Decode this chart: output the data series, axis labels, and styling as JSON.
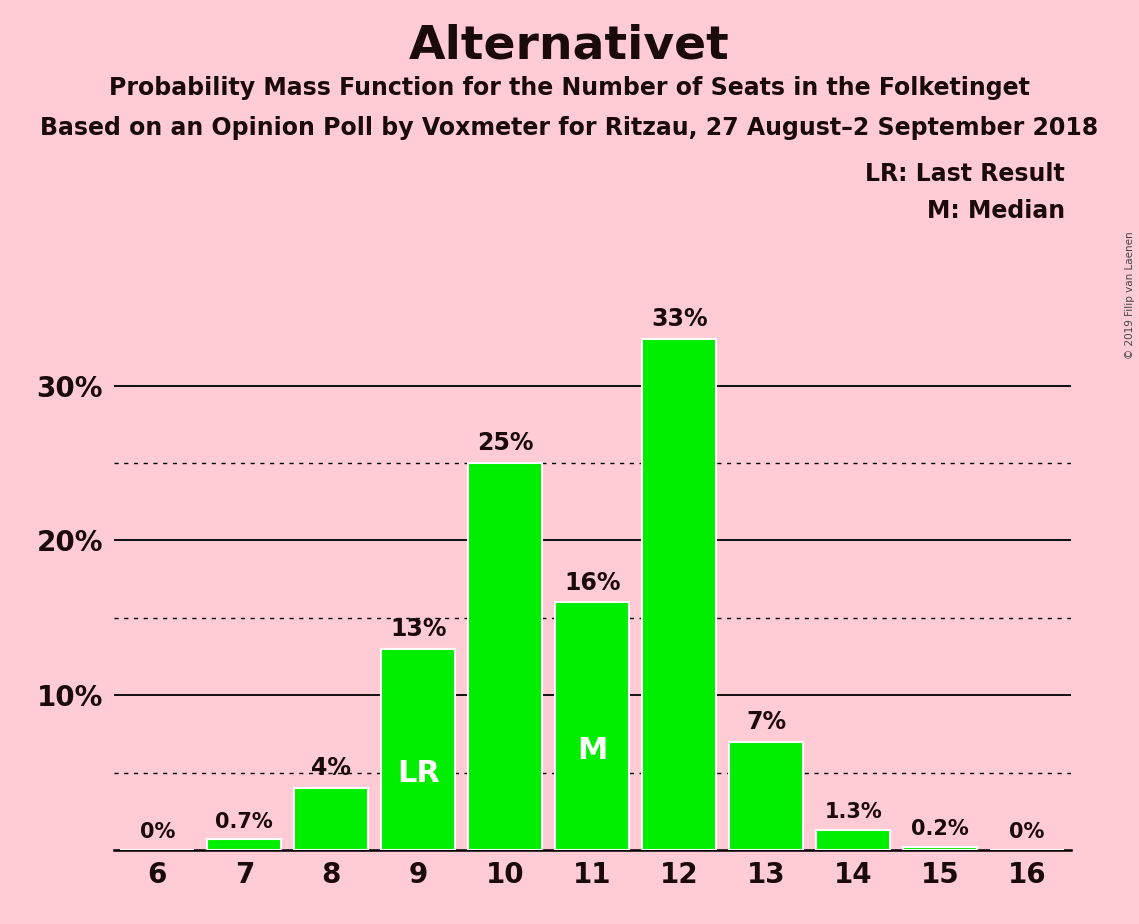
{
  "title": "Alternativet",
  "subtitle1": "Probability Mass Function for the Number of Seats in the Folketinget",
  "subtitle2": "Based on an Opinion Poll by Voxmeter for Ritzau, 27 August–2 September 2018",
  "seats": [
    6,
    7,
    8,
    9,
    10,
    11,
    12,
    13,
    14,
    15,
    16
  ],
  "probabilities": [
    0.0,
    0.7,
    4.0,
    13.0,
    25.0,
    16.0,
    33.0,
    7.0,
    1.3,
    0.2,
    0.0
  ],
  "bar_color": "#00ee00",
  "bar_edge_color": "#ffffff",
  "background_color": "#ffccd5",
  "text_color": "#1a0a0a",
  "bar_label_color_dark": "#1a0a0a",
  "bar_label_color_light": "#ffffff",
  "label_LR": "LR",
  "label_M": "M",
  "LR_seat": 9,
  "M_seat": 11,
  "legend_LR": "LR: Last Result",
  "legend_M": "M: Median",
  "ylim": [
    0,
    37
  ],
  "dotted_lines": [
    5,
    15,
    25
  ],
  "solid_lines": [
    10,
    20,
    30
  ],
  "watermark": "© 2019 Filip van Laenen",
  "bar_labels": [
    "0%",
    "0.7%",
    "4%",
    "13%",
    "25%",
    "16%",
    "33%",
    "7%",
    "1.3%",
    "0.2%",
    "0%"
  ],
  "title_fontsize": 34,
  "subtitle_fontsize": 17,
  "tick_fontsize": 20,
  "label_fontsize_large": 17,
  "label_fontsize_small": 15
}
